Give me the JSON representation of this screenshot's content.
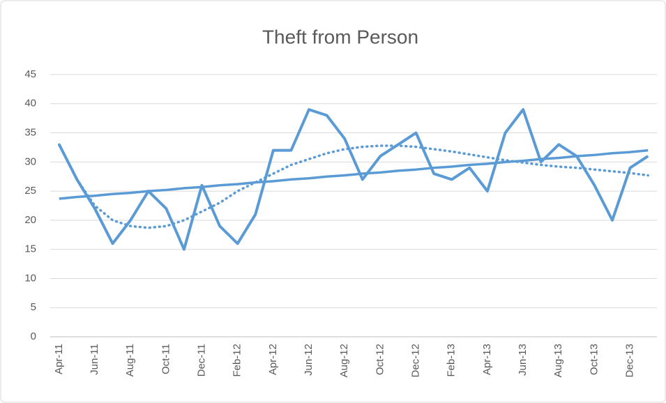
{
  "chart_data": {
    "type": "line",
    "title": "Theft from Person",
    "categories": [
      "Apr-11",
      null,
      "Jun-11",
      null,
      "Aug-11",
      null,
      "Oct-11",
      null,
      "Dec-11",
      null,
      "Feb-12",
      null,
      "Apr-12",
      null,
      "Jun-12",
      null,
      "Aug-12",
      null,
      "Oct-12",
      null,
      "Dec-12",
      null,
      "Feb-13",
      null,
      "Apr-13",
      null,
      "Jun-13",
      null,
      "Aug-13",
      null,
      "Oct-13",
      null,
      "Dec-13",
      null
    ],
    "series": [
      {
        "color": "#5b9bd5",
        "line_style": "solid",
        "width": 4,
        "values": [
          33,
          27,
          22,
          16,
          20,
          25,
          22,
          15,
          26,
          19,
          16,
          21,
          32,
          32,
          39,
          38,
          34,
          27,
          31,
          33,
          35,
          28,
          27,
          29,
          25,
          35,
          39,
          30,
          33,
          31,
          26,
          20,
          29,
          31
        ]
      },
      {
        "color": "#5b9bd5",
        "line_style": "solid",
        "width": 3.5,
        "values": [
          23.7,
          24.0,
          24.2,
          24.5,
          24.7,
          25.0,
          25.2,
          25.5,
          25.7,
          26.0,
          26.2,
          26.5,
          26.7,
          27.0,
          27.2,
          27.5,
          27.7,
          28.0,
          28.2,
          28.5,
          28.7,
          29.0,
          29.2,
          29.5,
          29.7,
          30.0,
          30.2,
          30.5,
          30.7,
          31.0,
          31.2,
          31.5,
          31.7,
          32.0
        ]
      },
      {
        "color": "#5b9bd5",
        "line_style": "dotted",
        "width": 3.5,
        "values": [
          33,
          27,
          22.5,
          20,
          19,
          18.7,
          19,
          20,
          21.5,
          23,
          25,
          26.5,
          28,
          29.5,
          30.5,
          31.5,
          32.2,
          32.6,
          32.8,
          32.8,
          32.6,
          32.2,
          31.8,
          31.3,
          30.8,
          30.3,
          29.9,
          29.5,
          29.2,
          29,
          28.7,
          28.4,
          28.1,
          27.7
        ]
      }
    ],
    "ylim": [
      0,
      45
    ],
    "yticks": [
      0,
      5,
      10,
      15,
      20,
      25,
      30,
      35,
      40,
      45
    ],
    "grid": true
  }
}
